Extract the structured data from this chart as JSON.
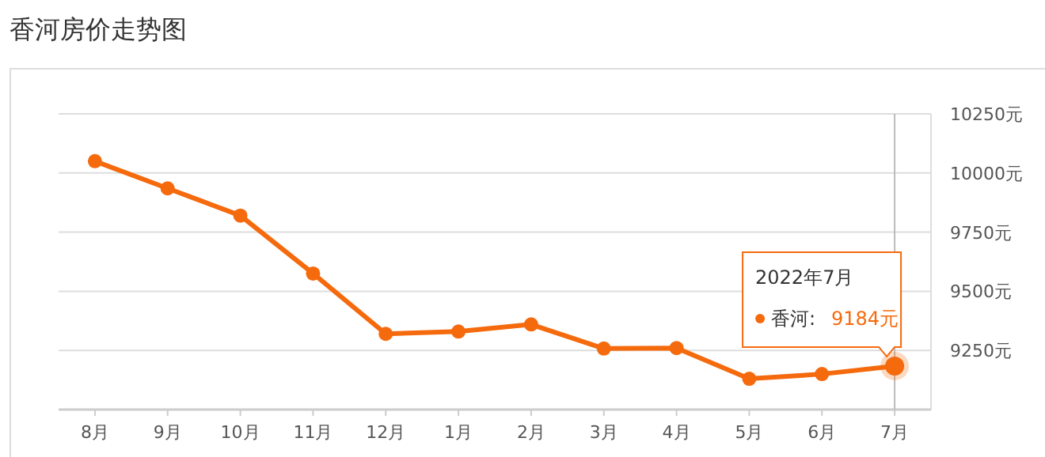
{
  "chart_data": {
    "type": "line",
    "title": "香河房价走势图",
    "categories": [
      "8月",
      "9月",
      "10月",
      "11月",
      "12月",
      "1月",
      "2月",
      "3月",
      "4月",
      "5月",
      "6月",
      "7月"
    ],
    "series": [
      {
        "color": "#f56a0d",
        "values": [
          10050,
          9935,
          9820,
          9575,
          9320,
          9330,
          9360,
          9258,
          9260,
          9130,
          9150,
          9184
        ],
        "value_labels": [
          null,
          null,
          null,
          null,
          null,
          null,
          null,
          null,
          null,
          null,
          null,
          "9184元"
        ]
      }
    ],
    "ylim": [
      9000,
      10250
    ],
    "yticks": [
      {
        "value": 9000,
        "label": null
      },
      {
        "value": 9250,
        "label": "9250元"
      },
      {
        "value": 9500,
        "label": "9500元"
      },
      {
        "value": 9750,
        "label": "9750元"
      },
      {
        "value": 10000,
        "label": "10000元"
      },
      {
        "value": 10250,
        "label": "10250元"
      }
    ],
    "grid": "y",
    "marker": "circle",
    "line_style": "solid",
    "legend": false,
    "ref_lines": [
      {
        "axis": "x",
        "value": "7月",
        "color": "#bbbbbb"
      }
    ],
    "annotations": [
      "2022年7月",
      "香河:"
    ]
  }
}
